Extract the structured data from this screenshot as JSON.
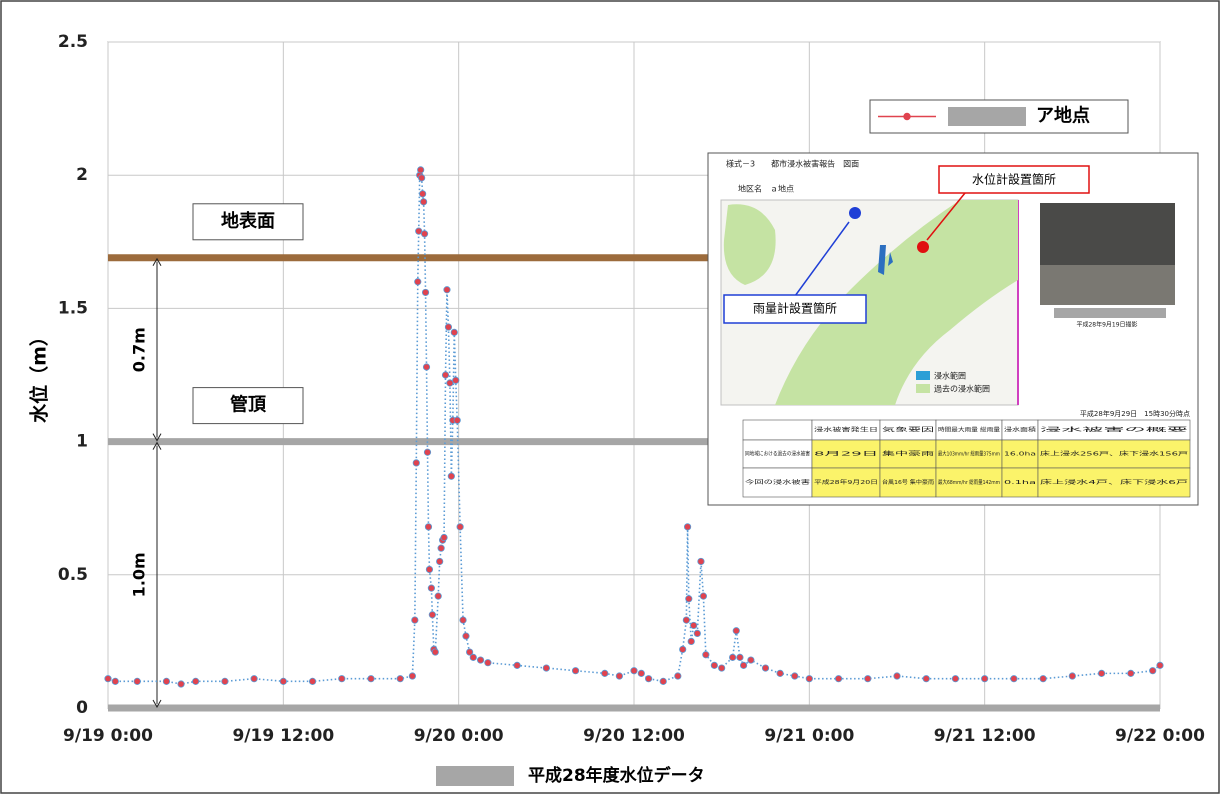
{
  "chart_data": {
    "type": "line",
    "y_label": "水位（m）",
    "footer_label": "平成28年度水位データ",
    "xlim": [
      "9/19 0:00",
      "9/22 0:00"
    ],
    "xticks": [
      "9/19 0:00",
      "9/19 12:00",
      "9/20 0:00",
      "9/20 12:00",
      "9/21 0:00",
      "9/21 12:00",
      "9/22 0:00"
    ],
    "ylim": [
      0,
      2.5
    ],
    "yticks": [
      0,
      0.5,
      1,
      1.5,
      2,
      2.5
    ],
    "grid": true,
    "legend": "upper right",
    "reference_lines": [
      {
        "value": 1.69,
        "label": "地表面",
        "color": "#9c6b3c"
      },
      {
        "value": 1.0,
        "label": "管頂",
        "color": "#a6a6a6"
      }
    ],
    "dimensions": [
      {
        "label": "0.7m",
        "from": 1.0,
        "to": 1.69
      },
      {
        "label": "1.0m",
        "from": 0,
        "to": 1.0
      }
    ],
    "x": [
      "9/19 0:00",
      "9/19 0:30",
      "9/19 2:00",
      "9/19 4:00",
      "9/19 5:00",
      "9/19 6:00",
      "9/19 8:00",
      "9/19 10:00",
      "9/19 12:00",
      "9/19 14:00",
      "9/19 16:00",
      "9/19 18:00",
      "9/19 20:00",
      "9/19 20:50",
      "9/19 21:00",
      "9/19 21:06",
      "9/19 21:12",
      "9/19 21:16",
      "9/19 21:20",
      "9/19 21:24",
      "9/19 21:28",
      "9/19 21:32",
      "9/19 21:36",
      "9/19 21:40",
      "9/19 21:44",
      "9/19 21:48",
      "9/19 21:52",
      "9/19 21:56",
      "9/19 22:00",
      "9/19 22:08",
      "9/19 22:12",
      "9/19 22:18",
      "9/19 22:24",
      "9/19 22:36",
      "9/19 22:42",
      "9/19 22:48",
      "9/19 22:54",
      "9/19 23:00",
      "9/19 23:06",
      "9/19 23:12",
      "9/19 23:18",
      "9/19 23:24",
      "9/19 23:30",
      "9/19 23:36",
      "9/19 23:42",
      "9/19 23:48",
      "9/19 23:54",
      "9/20 0:06",
      "9/20 0:18",
      "9/20 0:30",
      "9/20 0:45",
      "9/20 1:00",
      "9/20 1:30",
      "9/20 2:00",
      "9/20 4:00",
      "9/20 6:00",
      "9/20 8:00",
      "9/20 10:00",
      "9/20 11:00",
      "9/20 12:00",
      "9/20 12:30",
      "9/20 13:00",
      "9/20 14:00",
      "9/20 15:00",
      "9/20 15:20",
      "9/20 15:35",
      "9/20 15:40",
      "9/20 15:45",
      "9/20 15:55",
      "9/20 16:05",
      "9/20 16:20",
      "9/20 16:35",
      "9/20 16:45",
      "9/20 16:55",
      "9/20 17:30",
      "9/20 18:00",
      "9/20 18:45",
      "9/20 19:00",
      "9/20 19:15",
      "9/20 19:30",
      "9/20 20:00",
      "9/20 21:00",
      "9/20 22:00",
      "9/20 23:00",
      "9/21 0:00",
      "9/21 2:00",
      "9/21 4:00",
      "9/21 6:00",
      "9/21 8:00",
      "9/21 10:00",
      "9/21 12:00",
      "9/21 14:00",
      "9/21 16:00",
      "9/21 18:00",
      "9/21 20:00",
      "9/21 22:00",
      "9/21 23:30",
      "9/22 0:00"
    ],
    "series": [
      {
        "name": "ア地点",
        "color": "#e0434f",
        "line_color": "#5b9bd5",
        "values": [
          0.11,
          0.1,
          0.1,
          0.1,
          0.09,
          0.1,
          0.1,
          0.11,
          0.1,
          0.1,
          0.11,
          0.11,
          0.11,
          0.12,
          0.33,
          0.92,
          1.6,
          1.79,
          2.0,
          2.02,
          1.99,
          1.93,
          1.9,
          1.78,
          1.56,
          1.28,
          0.96,
          0.68,
          0.52,
          0.45,
          0.35,
          0.22,
          0.21,
          0.42,
          0.55,
          0.6,
          0.63,
          0.64,
          1.25,
          1.57,
          1.43,
          1.22,
          0.87,
          1.08,
          1.41,
          1.23,
          1.08,
          0.68,
          0.33,
          0.27,
          0.21,
          0.19,
          0.18,
          0.17,
          0.16,
          0.15,
          0.14,
          0.13,
          0.12,
          0.14,
          0.13,
          0.11,
          0.1,
          0.12,
          0.22,
          0.33,
          0.68,
          0.41,
          0.25,
          0.31,
          0.28,
          0.55,
          0.42,
          0.2,
          0.16,
          0.15,
          0.19,
          0.29,
          0.19,
          0.16,
          0.18,
          0.15,
          0.13,
          0.12,
          0.11,
          0.11,
          0.11,
          0.12,
          0.11,
          0.11,
          0.11,
          0.11,
          0.11,
          0.12,
          0.13,
          0.13,
          0.14,
          0.16
        ]
      }
    ]
  },
  "inset": {
    "title": "様式－3　　都市浸水被害報告　図面",
    "area": "地区名　ａ地点",
    "gauge_label": "水位計設置箇所",
    "rain_label": "雨量計設置箇所",
    "photo_caption": "平成28年9月19日撮影",
    "legend": [
      "浸水範囲",
      "過去の浸水範囲"
    ],
    "timestamp": "平成28年9月29日　15時30分時点",
    "table": {
      "header": [
        "",
        "浸水被害発生日",
        "気象要因",
        "時間最大雨量 総雨量",
        "浸水面積",
        "浸水被害の概要"
      ],
      "rows": [
        [
          "同地域における過去の浸水被害",
          "8月29日",
          "集中豪雨",
          "最大103mm/hr 総雨量375mm",
          "16.0ha",
          "床上浸水256戸、床下浸水156戸"
        ],
        [
          "今回の浸水被害",
          "平成28年9月20日",
          "台風16号 集中豪雨",
          "最大68mm/hr 総雨量142mm",
          "0.1ha",
          "床上浸水4戸、床下浸水6戸"
        ]
      ]
    }
  }
}
